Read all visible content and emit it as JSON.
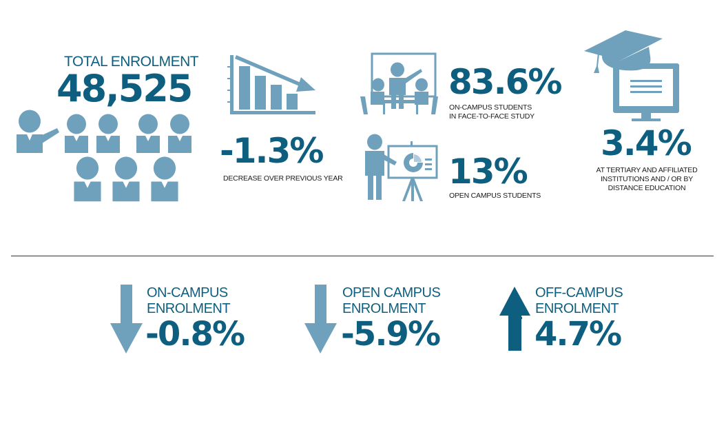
{
  "total": {
    "label": "TOTAL ENROLMENT",
    "value": "48,525"
  },
  "change": {
    "value": "-1.3%",
    "label": "DECREASE OVER PREVIOUS YEAR"
  },
  "on_campus_face": {
    "value": "83.6%",
    "label_line1": "ON-CAMPUS STUDENTS",
    "label_line2": "IN FACE-TO-FACE STUDY"
  },
  "open_campus": {
    "value": "13%",
    "label": "OPEN CAMPUS STUDENTS"
  },
  "tertiary": {
    "value": "3.4%",
    "label_line1": "AT TERTIARY AND AFFILIATED",
    "label_line2": "INSTITUTIONS AND / OR BY",
    "label_line3": "DISTANCE EDUCATION"
  },
  "enrolments": [
    {
      "label_line1": "ON-CAMPUS",
      "label_line2": "ENROLMENT",
      "value": "-0.8%",
      "direction": "down",
      "arrow_color": "#6fa1bd"
    },
    {
      "label_line1": "OPEN CAMPUS",
      "label_line2": "ENROLMENT",
      "value": "-5.9%",
      "direction": "down",
      "arrow_color": "#6fa1bd"
    },
    {
      "label_line1": "OFF-CAMPUS",
      "label_line2": "ENROLMENT",
      "value": "4.7%",
      "direction": "up",
      "arrow_color": "#0e5f7f"
    }
  ],
  "colors": {
    "dark": "#0e5f7f",
    "light": "#6fa1bd",
    "divider": "#333333"
  },
  "icons": [
    "people-group-icon",
    "declining-chart-icon",
    "classroom-icon",
    "presentation-icon",
    "graduation-computer-icon",
    "arrow-down-icon",
    "arrow-up-icon"
  ]
}
